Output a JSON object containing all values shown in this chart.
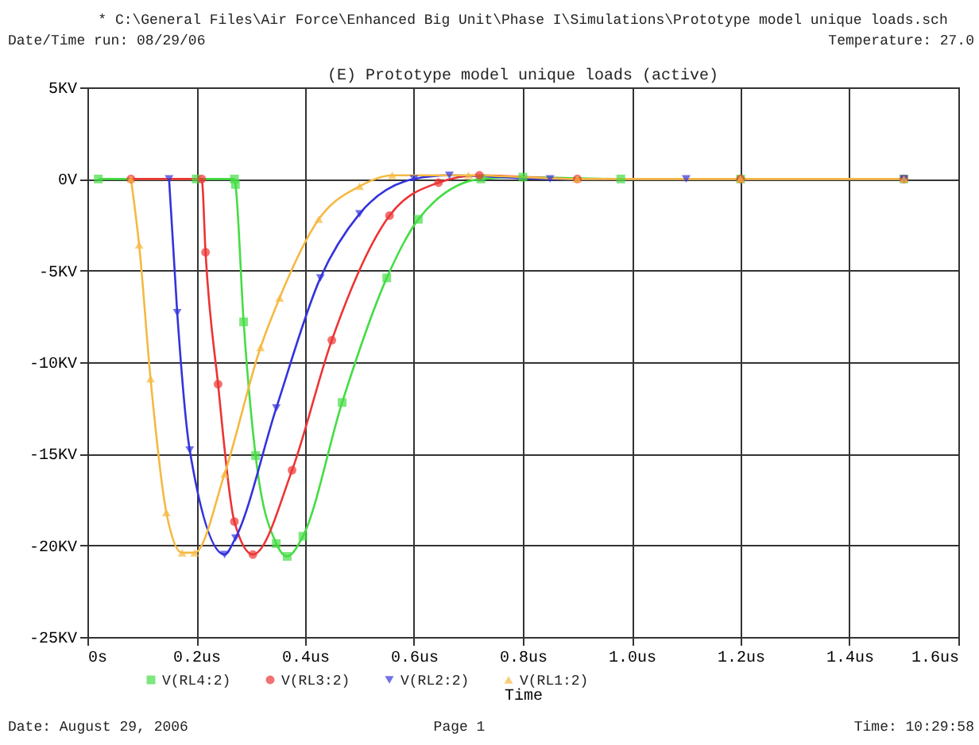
{
  "chart_data": {
    "type": "line",
    "title": "* C:\\General Files\\Air Force\\Enhanced Big Unit\\Phase I\\Simulations\\Prototype model unique loads.sch",
    "subtitle": "(E) Prototype model unique loads (active)",
    "xlabel": "Time",
    "annotations": [
      "Date/Time run: 08/29/06",
      "Temperature: 27.0",
      "Date: August 29, 2006",
      "Page 1",
      "Time: 10:29:58"
    ],
    "xlim": [
      0,
      1.6
    ],
    "ylim": [
      -25,
      5
    ],
    "xticks": [
      {
        "value": 0,
        "label": "0s"
      },
      {
        "value": 0.2,
        "label": "0.2us"
      },
      {
        "value": 0.4,
        "label": "0.4us"
      },
      {
        "value": 0.6,
        "label": "0.6us"
      },
      {
        "value": 0.8,
        "label": "0.8us"
      },
      {
        "value": 1.0,
        "label": "1.0us"
      },
      {
        "value": 1.2,
        "label": "1.2us"
      },
      {
        "value": 1.4,
        "label": "1.4us"
      },
      {
        "value": 1.6,
        "label": "1.6us"
      }
    ],
    "yticks": [
      {
        "value": 5,
        "label": "5KV"
      },
      {
        "value": 0,
        "label": "0V"
      },
      {
        "value": -5,
        "label": "-5KV"
      },
      {
        "value": -10,
        "label": "-10KV"
      },
      {
        "value": -15,
        "label": "-15KV"
      },
      {
        "value": -20,
        "label": "-20KV"
      },
      {
        "value": -25,
        "label": "-25KV"
      }
    ],
    "grid": true,
    "legend": "bottom",
    "line_style": "solid",
    "series": [
      {
        "name": "V(RL4:2)",
        "color": "#44dd44",
        "marker": "square",
        "x": [
          0.02,
          0.2,
          0.27,
          0.272,
          0.287,
          0.309,
          0.347,
          0.367,
          0.396,
          0.468,
          0.55,
          0.608,
          0.723,
          0.8,
          0.98,
          1.2,
          1.5
        ],
        "values": [
          0,
          0,
          0,
          -0.3,
          -7.8,
          -15.1,
          -19.9,
          -20.6,
          -19.5,
          -12.2,
          -5.4,
          -2.2,
          0,
          0.1,
          0,
          0,
          0
        ]
      },
      {
        "name": "V(RL3:2)",
        "color": "#ee3333",
        "marker": "circle",
        "x": [
          0.08,
          0.21,
          0.217,
          0.24,
          0.27,
          0.304,
          0.376,
          0.449,
          0.555,
          0.645,
          0.72,
          0.9,
          1.2,
          1.5
        ],
        "values": [
          0,
          0,
          -4.0,
          -11.2,
          -18.7,
          -20.5,
          -15.9,
          -8.8,
          -2.0,
          -0.2,
          0.2,
          0,
          0,
          0
        ]
      },
      {
        "name": "V(RL2:2)",
        "color": "#3333dd",
        "marker": "triangle-down",
        "x": [
          0.15,
          0.165,
          0.188,
          0.252,
          0.272,
          0.347,
          0.428,
          0.5,
          0.6,
          0.665,
          0.85,
          1.1,
          1.5
        ],
        "values": [
          0,
          -7.3,
          -14.8,
          -20.5,
          -19.6,
          -12.5,
          -5.4,
          -1.9,
          0,
          0.2,
          0,
          0,
          0
        ]
      },
      {
        "name": "V(RL1:2)",
        "color": "#f5b942",
        "marker": "triangle",
        "x": [
          0.08,
          0.095,
          0.116,
          0.145,
          0.174,
          0.197,
          0.252,
          0.318,
          0.353,
          0.425,
          0.5,
          0.56,
          0.7,
          0.9,
          1.2,
          1.5
        ],
        "values": [
          0,
          -3.6,
          -10.9,
          -18.2,
          -20.4,
          -20.4,
          -16.1,
          -9.2,
          -6.5,
          -2.2,
          -0.4,
          0.2,
          0.2,
          0,
          0,
          0
        ]
      }
    ]
  }
}
